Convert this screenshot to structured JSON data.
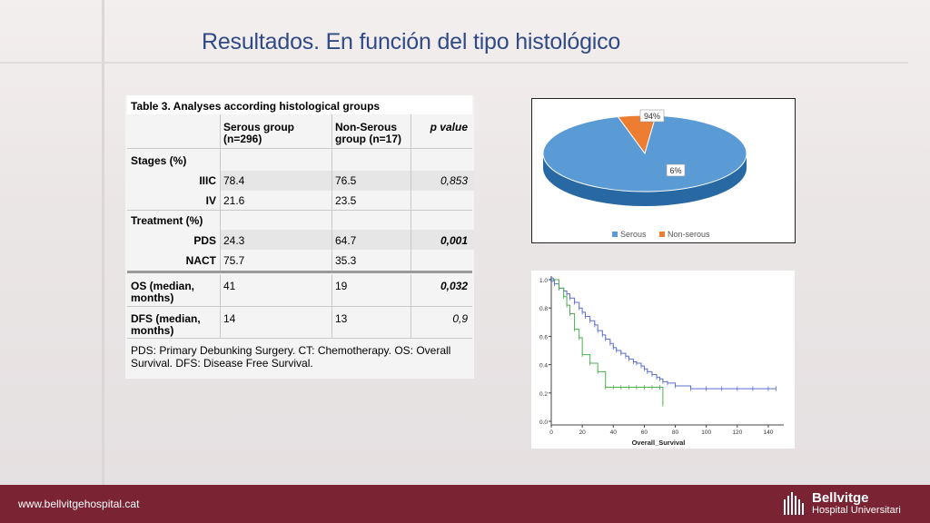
{
  "slide": {
    "title": "Resultados. En función del tipo histológico"
  },
  "table": {
    "caption": "Table 3.  Analyses according  histological groups",
    "col_serous": [
      "Serous group",
      "(n=296)"
    ],
    "col_nonserous": [
      "Non-Serous",
      "group (n=17)"
    ],
    "col_p": "p value",
    "stages_label": "Stages (%)",
    "rows_stage": [
      {
        "label": "IIIC",
        "serous": "78.4",
        "nonserous": "76.5",
        "p": "0,853"
      },
      {
        "label": "IV",
        "serous": "21.6",
        "nonserous": "23.5",
        "p": ""
      }
    ],
    "treatment_label": "Treatment (%)",
    "rows_treatment": [
      {
        "label": "PDS",
        "serous": "24.3",
        "nonserous": "64.7",
        "p": "0,001"
      },
      {
        "label": "NACT",
        "serous": "75.7",
        "nonserous": "35.3",
        "p": ""
      }
    ],
    "os": {
      "label": [
        "OS (median,",
        "months)"
      ],
      "serous": "41",
      "nonserous": "19",
      "p": "0,032"
    },
    "dfs": {
      "label": [
        "DFS (median,",
        "months)"
      ],
      "serous": "14",
      "nonserous": "13",
      "p": "0,9"
    },
    "footnote": [
      "PDS: Primary Debunking Surgery. CT: Chemotherapy. OS: Overall",
      "Survival. DFS: Disease Free Survival."
    ]
  },
  "chart_data": [
    {
      "type": "pie",
      "categories": [
        "Serous",
        "Non-serous"
      ],
      "values": [
        94,
        6
      ],
      "data_labels": [
        "94%",
        "6%"
      ],
      "colors": [
        "#5b9bd5",
        "#ed7d31"
      ],
      "legend_position": "bottom"
    },
    {
      "type": "line",
      "xlabel": "Overall_Survival",
      "x_ticks": [
        "0",
        "20",
        "40",
        "60",
        "80",
        "100",
        "120",
        "140"
      ],
      "y_ticks": [
        "0.0",
        "0.2",
        "0.4",
        "0.6",
        "0.8",
        "1.0"
      ],
      "xlim": [
        0,
        150
      ],
      "ylim": [
        0,
        1
      ],
      "series": [
        {
          "color": "#5b6fd0",
          "x": [
            0,
            2,
            5,
            8,
            10,
            12,
            15,
            18,
            20,
            22,
            25,
            28,
            30,
            33,
            35,
            38,
            40,
            42,
            45,
            48,
            50,
            53,
            55,
            58,
            60,
            62,
            65,
            68,
            70,
            72,
            75,
            80,
            90,
            100,
            110,
            120,
            130,
            140,
            145
          ],
          "y": [
            1.0,
            0.97,
            0.94,
            0.92,
            0.9,
            0.87,
            0.84,
            0.8,
            0.77,
            0.74,
            0.71,
            0.68,
            0.64,
            0.61,
            0.58,
            0.55,
            0.52,
            0.5,
            0.48,
            0.46,
            0.44,
            0.42,
            0.41,
            0.39,
            0.37,
            0.35,
            0.33,
            0.31,
            0.3,
            0.28,
            0.27,
            0.25,
            0.23,
            0.23,
            0.23,
            0.23,
            0.23,
            0.23,
            0.23
          ]
        },
        {
          "color": "#4caf50",
          "x": [
            0,
            5,
            8,
            10,
            12,
            15,
            18,
            20,
            25,
            30,
            35,
            40,
            45,
            50,
            55,
            60,
            65,
            70,
            72
          ],
          "y": [
            1.0,
            0.94,
            0.88,
            0.82,
            0.76,
            0.65,
            0.59,
            0.47,
            0.41,
            0.35,
            0.24,
            0.24,
            0.24,
            0.24,
            0.24,
            0.24,
            0.24,
            0.24,
            0.12
          ]
        }
      ]
    }
  ],
  "footer": {
    "url": "www.bellvitgehospital.cat",
    "logo_line1": "Bellvitge",
    "logo_line2": "Hospital Universitari"
  },
  "colors": {
    "title": "#2f4a86",
    "footer": "#7a2332"
  }
}
